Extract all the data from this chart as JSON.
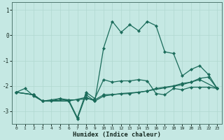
{
  "xlabel": "Humidex (Indice chaleur)",
  "background_color": "#c5e8e3",
  "grid_color": "#b0d8d0",
  "line_color": "#1a6b5a",
  "xlim": [
    -0.5,
    23.5
  ],
  "ylim": [
    -3.5,
    1.3
  ],
  "yticks": [
    1,
    0,
    -1,
    -2,
    -3
  ],
  "xticks": [
    0,
    1,
    2,
    3,
    4,
    5,
    6,
    7,
    8,
    9,
    10,
    11,
    12,
    13,
    14,
    15,
    16,
    17,
    18,
    19,
    20,
    21,
    22,
    23
  ],
  "line1_x": [
    0,
    1,
    2,
    3,
    4,
    5,
    6,
    7,
    8,
    9,
    10,
    11,
    12,
    13,
    14,
    15,
    16,
    17,
    18,
    19,
    20,
    21,
    22,
    23
  ],
  "line1_y": [
    -2.25,
    -2.1,
    -2.4,
    -2.6,
    -2.55,
    -2.5,
    -2.55,
    -3.25,
    -2.25,
    -2.5,
    -1.75,
    -1.85,
    -1.8,
    -1.8,
    -1.75,
    -1.8,
    -2.3,
    -2.35,
    -2.1,
    -2.15,
    -2.05,
    -2.05,
    -2.05,
    -2.1
  ],
  "line2_x": [
    0,
    2,
    3,
    4,
    5,
    6,
    7,
    8,
    9,
    10,
    11,
    12,
    13,
    14,
    15,
    16,
    17,
    18,
    19,
    20,
    21,
    22,
    23
  ],
  "line2_y": [
    -2.25,
    -2.35,
    -2.6,
    -2.6,
    -2.5,
    -2.6,
    -3.3,
    -2.35,
    -2.6,
    -0.5,
    0.55,
    0.12,
    0.42,
    0.18,
    0.55,
    0.38,
    -0.65,
    -0.72,
    -1.6,
    -1.35,
    -1.2,
    -1.55,
    -2.1
  ],
  "line3_x": [
    0,
    2,
    3,
    6,
    8,
    9,
    10,
    11,
    12,
    14,
    15,
    16,
    17,
    18,
    19,
    20,
    21,
    22,
    23
  ],
  "line3_y": [
    -2.25,
    -2.35,
    -2.6,
    -2.6,
    -2.45,
    -2.6,
    -2.4,
    -2.35,
    -2.3,
    -2.25,
    -2.2,
    -2.1,
    -2.05,
    -2.0,
    -1.9,
    -1.85,
    -1.7,
    -1.65,
    -2.1
  ],
  "line4_x": [
    0,
    2,
    3,
    6,
    7,
    8,
    9,
    10,
    13,
    15,
    19,
    20,
    21,
    23
  ],
  "line4_y": [
    -2.25,
    -2.35,
    -2.6,
    -2.55,
    -2.55,
    -2.5,
    -2.55,
    -2.35,
    -2.3,
    -2.2,
    -1.95,
    -1.85,
    -1.75,
    -2.1
  ]
}
